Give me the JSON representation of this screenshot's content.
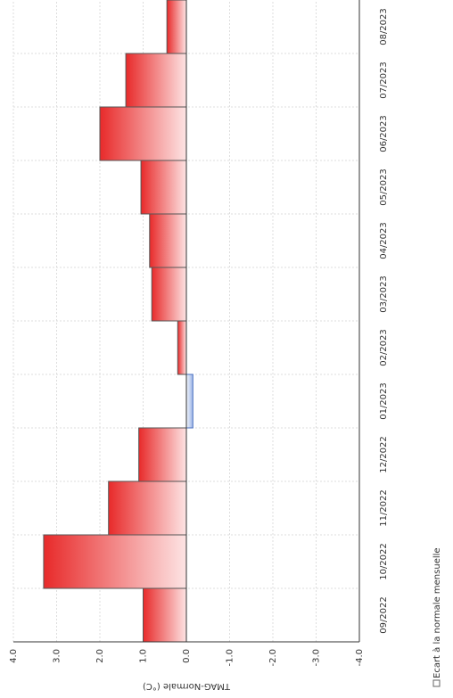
{
  "chart_data": {
    "type": "bar",
    "y_label": "TMAG-Normale (°C)",
    "legend": "Ecart à la normale mensuelle",
    "categories": [
      "09/2022",
      "10/2022",
      "11/2022",
      "12/2022",
      "01/2023",
      "02/2023",
      "03/2023",
      "04/2023",
      "05/2023",
      "06/2023",
      "07/2023",
      "08/2023"
    ],
    "values": [
      1.0,
      3.3,
      1.8,
      1.1,
      -0.15,
      0.2,
      0.8,
      0.85,
      1.05,
      2.0,
      1.4,
      0.45
    ],
    "color": "#e82a2a",
    "negative_color": "#9db5e6",
    "ylim": [
      -4,
      4
    ],
    "yticks": [
      {
        "value": -4,
        "label": "-4.0"
      },
      {
        "value": -3,
        "label": "-3.0"
      },
      {
        "value": -2,
        "label": "-2.0"
      },
      {
        "value": -1,
        "label": "-1.0"
      },
      {
        "value": 0,
        "label": "0.0"
      },
      {
        "value": 1,
        "label": "1.0"
      },
      {
        "value": 2,
        "label": "2.0"
      },
      {
        "value": 3,
        "label": "3.0"
      },
      {
        "value": 4,
        "label": "4.0"
      }
    ],
    "grid": true
  }
}
